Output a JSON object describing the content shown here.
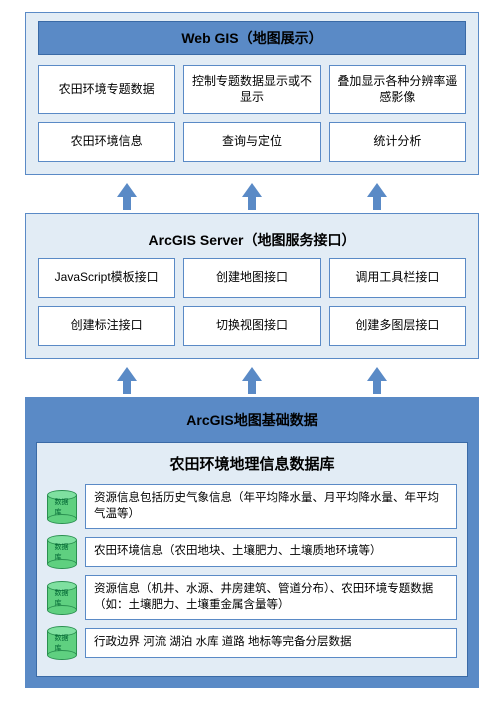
{
  "type": "flowchart",
  "colors": {
    "border": "#5a8ac6",
    "layer_bg": "#e2ecf5",
    "header_bg": "#5a8ac6",
    "arrow": "#5a8ac6",
    "cylinder": "#5fd080",
    "cylinder_top": "#7fe0a0",
    "cylinder_border": "#2a9050",
    "cell_bg": "#ffffff"
  },
  "fonts": {
    "title": 14,
    "cell": 12,
    "db": 11.5
  },
  "layer1": {
    "title": "Web GIS（地图展示）",
    "cells": [
      "农田环境专题数据",
      "控制专题数据显示或不显示",
      "叠加显示各种分辨率遥感影像",
      "农田环境信息",
      "查询与定位",
      "统计分析"
    ]
  },
  "layer2": {
    "title": "ArcGIS Server（地图服务接口）",
    "cells": [
      "JavaScript模板接口",
      "创建地图接口",
      "调用工具栏接口",
      "创建标注接口",
      "切换视图接口",
      "创建多图层接口"
    ]
  },
  "layer3": {
    "title": "ArcGIS地图基础数据",
    "inner_title": "农田环境地理信息数据库",
    "cyl_label": "数据库",
    "db": [
      "资源信息包括历史气象信息（年平均降水量、月平均降水量、年平均气温等）",
      "农田环境信息（农田地块、土壤肥力、土壤质地环境等）",
      "资源信息（机井、水源、井房建筑、管道分布）、农田环境专题数据（如：土壤肥力、土壤重金属含量等）",
      "行政边界 河流 湖泊 水库 道路 地标等完备分层数据"
    ]
  }
}
